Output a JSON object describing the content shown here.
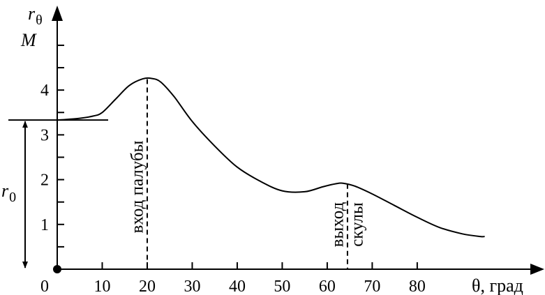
{
  "chart_data": {
    "type": "line",
    "title": "",
    "xlabel": "θ, град",
    "ylabel_symbol": "r",
    "ylabel_subscript": "θ",
    "ylabel_unit": "M",
    "x_ticks": [
      0,
      10,
      20,
      30,
      40,
      50,
      60,
      70,
      80
    ],
    "x_tick_labels": [
      "0",
      "10",
      "20",
      "30",
      "40",
      "50",
      "60",
      "70",
      "80"
    ],
    "y_ticks": [
      1,
      2,
      3,
      4
    ],
    "y_tick_labels": [
      "1",
      "2",
      "3",
      "4"
    ],
    "xlim": [
      0,
      107
    ],
    "ylim": [
      0,
      5.7
    ],
    "grid": false,
    "series": [
      {
        "x": [
          0,
          5,
          8,
          10,
          13,
          16,
          19,
          21,
          23,
          26,
          30,
          35,
          40,
          45,
          50,
          55,
          59,
          62,
          63.5,
          66,
          70,
          75,
          80,
          85,
          90,
          94,
          95
        ],
        "y": [
          3.33,
          3.37,
          3.42,
          3.5,
          3.8,
          4.1,
          4.25,
          4.26,
          4.18,
          3.85,
          3.3,
          2.75,
          2.28,
          1.97,
          1.75,
          1.73,
          1.84,
          1.91,
          1.92,
          1.86,
          1.68,
          1.42,
          1.16,
          0.93,
          0.79,
          0.73,
          0.73
        ]
      }
    ],
    "r0_level": 3.33,
    "r0_label_symbol": "r",
    "r0_label_subscript": "0",
    "annotations": [
      {
        "x": 20,
        "y_top": 4.26,
        "text": "вход палубы"
      },
      {
        "x": 64.5,
        "y_top": 1.92,
        "text": "выход"
      },
      {
        "x": 64.5,
        "y_top": 1.92,
        "text": "скулы"
      }
    ]
  }
}
